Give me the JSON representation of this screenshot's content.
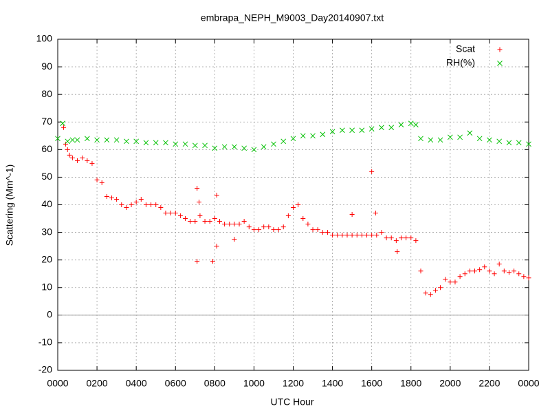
{
  "chart_data": {
    "type": "scatter",
    "title": "embrapa_NEPH_M9003_Day20140907.txt",
    "xlabel": "UTC Hour",
    "ylabel": "Scattering (Mm^-1)",
    "xlim": [
      0,
      24
    ],
    "xticks": [
      {
        "value": 0,
        "label": "0000"
      },
      {
        "value": 2,
        "label": "0200"
      },
      {
        "value": 4,
        "label": "0400"
      },
      {
        "value": 6,
        "label": "0600"
      },
      {
        "value": 8,
        "label": "0800"
      },
      {
        "value": 10,
        "label": "1000"
      },
      {
        "value": 12,
        "label": "1200"
      },
      {
        "value": 14,
        "label": "1400"
      },
      {
        "value": 16,
        "label": "1600"
      },
      {
        "value": 18,
        "label": "1800"
      },
      {
        "value": 20,
        "label": "2000"
      },
      {
        "value": 22,
        "label": "2200"
      },
      {
        "value": 24,
        "label": "0000"
      }
    ],
    "ylim": [
      -20,
      100
    ],
    "yticks": [
      -20,
      -10,
      0,
      10,
      20,
      30,
      40,
      50,
      60,
      70,
      80,
      90,
      100
    ],
    "grid": true,
    "zeroaxis": true,
    "legend": "upper right",
    "series": [
      {
        "name": "Scat",
        "color": "#ff0000",
        "marker": "plus",
        "x": [
          0.3,
          0.4,
          0.5,
          0.6,
          0.75,
          1.0,
          1.25,
          1.5,
          1.75,
          2.0,
          2.25,
          2.5,
          2.75,
          3.0,
          3.25,
          3.5,
          3.75,
          4.0,
          4.25,
          4.5,
          4.75,
          5.0,
          5.25,
          5.5,
          5.75,
          6.0,
          6.25,
          6.5,
          6.75,
          7.0,
          7.25,
          7.5,
          7.75,
          8.0,
          8.25,
          8.5,
          8.75,
          9.0,
          9.25,
          9.5,
          9.75,
          10.0,
          10.25,
          10.5,
          10.75,
          11.0,
          11.25,
          11.5,
          11.75,
          12.0,
          12.25,
          12.5,
          12.75,
          13.0,
          13.25,
          13.5,
          13.75,
          14.0,
          14.25,
          14.5,
          14.75,
          15.0,
          15.25,
          15.5,
          15.75,
          16.0,
          16.25,
          16.5,
          16.75,
          17.0,
          17.25,
          17.5,
          17.75,
          18.0,
          18.25,
          18.5,
          18.75,
          19.0,
          19.25,
          19.5,
          19.75,
          20.0,
          20.25,
          20.5,
          20.75,
          21.0,
          21.25,
          21.5,
          21.75,
          22.0,
          22.25,
          22.5,
          22.75,
          23.0,
          23.25,
          23.5,
          23.75,
          24.0,
          7.1,
          7.1,
          7.9,
          8.1,
          8.1,
          7.2,
          16.0,
          15.0,
          16.2,
          17.3,
          9.0
        ],
        "values": [
          68,
          62,
          60,
          58,
          57,
          56,
          57,
          56,
          55,
          49,
          48,
          43,
          42.5,
          42,
          40,
          39,
          40,
          41,
          42,
          40,
          40,
          40,
          39,
          37,
          37,
          37,
          36,
          35,
          34,
          34,
          36,
          34,
          34,
          35,
          34,
          33,
          33,
          33,
          33,
          34,
          32,
          31,
          31,
          32,
          32,
          31,
          31,
          32,
          36,
          39,
          40,
          35,
          33,
          31,
          31,
          30,
          30,
          29,
          29,
          29,
          29,
          29,
          29,
          29,
          29,
          29,
          29,
          30,
          28,
          28,
          27,
          28,
          28,
          28,
          27,
          16,
          8,
          7.5,
          9,
          10,
          13,
          12,
          12,
          14,
          15,
          16,
          16,
          16.5,
          17.5,
          16,
          15,
          18.5,
          16,
          15.5,
          16,
          15,
          14,
          13.5,
          46,
          19.5,
          19.5,
          43.5,
          25,
          41,
          52,
          36.5,
          37,
          23,
          27.5
        ]
      },
      {
        "name": "RH(%)",
        "color": "#00c000",
        "marker": "cross",
        "x": [
          0,
          0.25,
          0.5,
          0.75,
          1,
          1.5,
          2,
          2.5,
          3,
          3.5,
          4,
          4.5,
          5,
          5.5,
          6,
          6.5,
          7,
          7.5,
          8,
          8.5,
          9,
          9.5,
          10,
          10.5,
          11,
          11.5,
          12,
          12.5,
          13,
          13.5,
          14,
          14.5,
          15,
          15.5,
          16,
          16.5,
          17,
          17.5,
          18,
          18.25,
          18.5,
          19,
          19.5,
          20,
          20.5,
          21,
          21.5,
          22,
          22.5,
          23,
          23.5,
          24
        ],
        "values": [
          64,
          69.5,
          63,
          63.5,
          63.5,
          64,
          63.5,
          63.5,
          63.5,
          63,
          63,
          62.5,
          62.5,
          62.5,
          62,
          62,
          61.5,
          61.5,
          60.5,
          61,
          61,
          60.5,
          60,
          61,
          62,
          63,
          64,
          65,
          65,
          65.5,
          66.5,
          67,
          67,
          67,
          67.5,
          68,
          68,
          69,
          69.5,
          69,
          64,
          63.5,
          63.5,
          64.5,
          64.5,
          66,
          64,
          63.5,
          63,
          62.5,
          62.5,
          62
        ]
      }
    ]
  }
}
